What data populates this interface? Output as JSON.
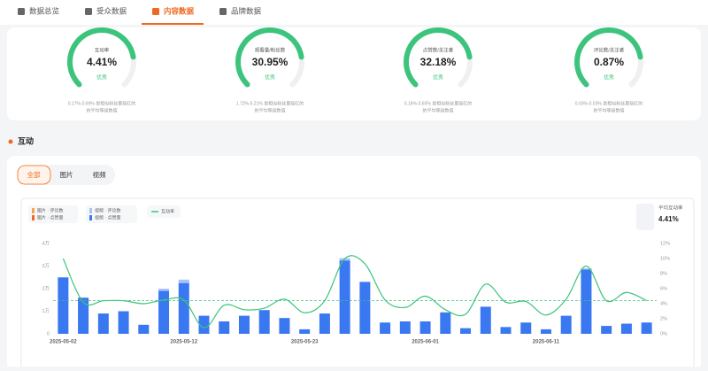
{
  "tabs": [
    "数据总览",
    "受众数据",
    "内容数据",
    "品牌数据"
  ],
  "metrics": [
    {
      "label": "互动率",
      "value": "4.41%",
      "rating": "优秀",
      "note": [
        "0.17%-0.69% 是相似粉丝量级红的",
        "的平均等级数值"
      ]
    },
    {
      "label": "观看量/粉丝数",
      "value": "30.95%",
      "rating": "优秀",
      "note": [
        "1.72%-5.21% 是相似粉丝量级红的",
        "的平均等级数值"
      ]
    },
    {
      "label": "点赞数/关注者",
      "value": "32.18%",
      "rating": "优秀",
      "note": [
        "0.16%-0.65% 是相似粉丝量级红的",
        "的平均等级数值"
      ]
    },
    {
      "label": "评论数/关注者",
      "value": "0.87%",
      "rating": "优秀",
      "note": [
        "0.03%-0.03% 是相似粉丝量级红的",
        "的平均等级数值"
      ]
    }
  ],
  "section_title": "互动",
  "filters": [
    "全部",
    "图片",
    "视频"
  ],
  "chart_data": {
    "type": "bar",
    "categories": [
      "2025-05-02",
      null,
      null,
      null,
      null,
      null,
      "2025-05-12",
      null,
      null,
      null,
      null,
      null,
      "2025-05-23",
      null,
      null,
      null,
      null,
      null,
      "2025-06-01",
      null,
      null,
      null,
      null,
      null,
      "2025-06-11",
      null,
      null,
      null,
      null,
      null
    ],
    "series": [
      {
        "name": "图片 · 评论数",
        "color": "#f7a451",
        "values": [
          0,
          0,
          0,
          0,
          0,
          0,
          0,
          0,
          0,
          0,
          0,
          0,
          0,
          0,
          0,
          0,
          0,
          0,
          0,
          0,
          0,
          0,
          0,
          0,
          0,
          0,
          0,
          0,
          0,
          0
        ]
      },
      {
        "name": "图片 · 点赞量",
        "color": "#ef6a1f",
        "values": [
          0,
          0,
          0,
          0,
          0,
          0,
          0,
          0,
          0,
          0,
          0,
          0,
          0,
          0,
          0,
          0,
          0,
          0,
          0,
          0,
          0,
          0,
          0,
          0,
          0,
          0,
          0,
          0,
          0,
          0
        ]
      },
      {
        "name": "视频 · 评论数",
        "color": "#a9c3f6",
        "values": [
          0,
          0,
          0,
          0,
          0,
          1000,
          1500,
          0,
          0,
          0,
          0,
          0,
          0,
          0,
          1000,
          0,
          0,
          0,
          0,
          0,
          0,
          0,
          0,
          0,
          0,
          0,
          500,
          0,
          0,
          0
        ]
      },
      {
        "name": "视频 · 点赞量",
        "color": "#3a78f2",
        "values": [
          25000,
          16000,
          9000,
          10000,
          4000,
          19000,
          22500,
          8000,
          5500,
          8000,
          10500,
          7000,
          2000,
          9000,
          32500,
          23000,
          5000,
          5500,
          5500,
          9500,
          2500,
          12000,
          3000,
          5000,
          2000,
          8000,
          28500,
          3500,
          4500,
          5000
        ]
      },
      {
        "name": "互动率",
        "type": "line",
        "axis": "y2",
        "color": "#3cc47c",
        "values": [
          10,
          4.2,
          4.4,
          4.4,
          4,
          4.5,
          4.5,
          0.8,
          3.8,
          3.2,
          3.4,
          4.6,
          2.8,
          4.4,
          10,
          9.3,
          4.5,
          3.5,
          5,
          3.2,
          2.6,
          6.6,
          4.2,
          4.3,
          2.5,
          4.6,
          9,
          4.4,
          5.5,
          4.4
        ]
      }
    ],
    "ylim": [
      0,
      40000
    ],
    "yticks": [
      {
        "value": 0,
        "label": "0"
      },
      {
        "value": 10000,
        "label": "1万"
      },
      {
        "value": 20000,
        "label": "2万"
      },
      {
        "value": 30000,
        "label": "3万"
      },
      {
        "value": 40000,
        "label": "4万"
      }
    ],
    "y2lim": [
      0,
      12
    ],
    "y2ticks": [
      {
        "value": 0,
        "label": "0%"
      },
      {
        "value": 2,
        "label": "2%"
      },
      {
        "value": 4,
        "label": "4%"
      },
      {
        "value": 6,
        "label": "6%"
      },
      {
        "value": 8,
        "label": "8%"
      },
      {
        "value": 10,
        "label": "10%"
      },
      {
        "value": 12,
        "label": "12%"
      }
    ],
    "grid": false,
    "average": {
      "label": "平均互动率",
      "value": 4.41,
      "value_label": "4.41%"
    }
  }
}
